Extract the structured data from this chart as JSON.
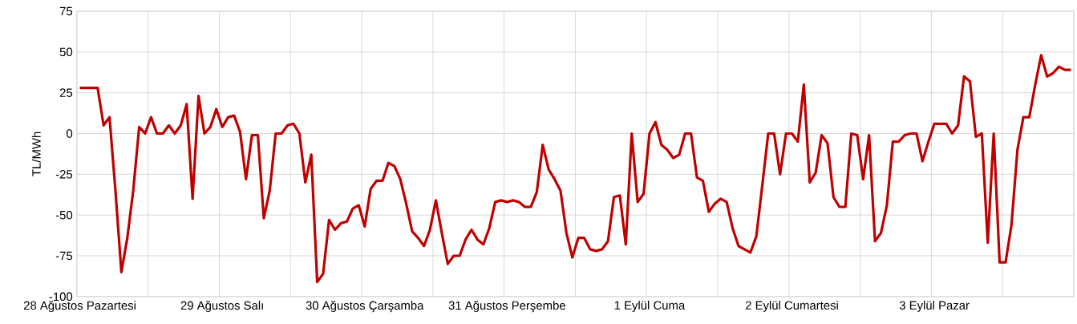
{
  "chart_data": {
    "type": "line",
    "ylabel": "TL/MWh",
    "color": "#c00000",
    "line_style": "solid",
    "grid": true,
    "ylim": [
      -100,
      75
    ],
    "yticks": [
      -100,
      -75,
      -50,
      -25,
      0,
      25,
      50,
      75
    ],
    "categories": [
      "28 Ağustos Pazartesi",
      null,
      null,
      null,
      null,
      null,
      null,
      null,
      null,
      null,
      null,
      null,
      null,
      null,
      null,
      null,
      null,
      null,
      null,
      null,
      null,
      null,
      null,
      null,
      "29 Ağustos Salı",
      null,
      null,
      null,
      null,
      null,
      null,
      null,
      null,
      null,
      null,
      null,
      null,
      null,
      null,
      null,
      null,
      null,
      null,
      null,
      null,
      null,
      null,
      null,
      "30 Ağustos Çarşamba",
      null,
      null,
      null,
      null,
      null,
      null,
      null,
      null,
      null,
      null,
      null,
      null,
      null,
      null,
      null,
      null,
      null,
      null,
      null,
      null,
      null,
      null,
      null,
      "31 Ağustos Perşembe",
      null,
      null,
      null,
      null,
      null,
      null,
      null,
      null,
      null,
      null,
      null,
      null,
      null,
      null,
      null,
      null,
      null,
      null,
      null,
      null,
      null,
      null,
      null,
      "1 Eylül Cuma",
      null,
      null,
      null,
      null,
      null,
      null,
      null,
      null,
      null,
      null,
      null,
      null,
      null,
      null,
      null,
      null,
      null,
      null,
      null,
      null,
      null,
      null,
      null,
      "2 Eylül Cumartesi",
      null,
      null,
      null,
      null,
      null,
      null,
      null,
      null,
      null,
      null,
      null,
      null,
      null,
      null,
      null,
      null,
      null,
      null,
      null,
      null,
      null,
      null,
      null,
      "3 Eylül Pazar",
      null,
      null,
      null,
      null,
      null,
      null,
      null,
      null,
      null,
      null,
      null,
      null,
      null,
      null,
      null,
      null,
      null,
      null,
      null,
      null,
      null,
      null,
      null
    ],
    "values": [
      28,
      28,
      28,
      28,
      5,
      10,
      -35,
      -85,
      -64,
      -35,
      4,
      0,
      10,
      0,
      0,
      5,
      0,
      5,
      18,
      -40,
      23,
      0,
      4,
      15,
      4,
      10,
      11,
      1,
      -28,
      -1,
      -1,
      -52,
      -35,
      0,
      0,
      5,
      6,
      0,
      -30,
      -13,
      -91,
      -86,
      -53,
      -59,
      -55,
      -54,
      -46,
      -44,
      -57,
      -34,
      -29,
      -29,
      -18,
      -20,
      -28,
      -43,
      -60,
      -64,
      -69,
      -59,
      -41,
      -61,
      -80,
      -75,
      -75,
      -65,
      -59,
      -65,
      -68,
      -58,
      -42,
      -41,
      -42,
      -41,
      -42,
      -45,
      -45,
      -36,
      -7,
      -22,
      -28,
      -35,
      -61,
      -76,
      -64,
      -64,
      -71,
      -72,
      -71,
      -66,
      -39,
      -38,
      -68,
      0,
      -42,
      -37,
      0,
      7,
      -7,
      -10,
      -15,
      -13,
      0,
      0,
      -27,
      -29,
      -48,
      -43,
      -40,
      -42,
      -58,
      -69,
      -71,
      -73,
      -63,
      -32,
      0,
      0,
      -25,
      0,
      0,
      -5,
      30,
      -30,
      -24,
      -1,
      -6,
      -39,
      -45,
      -45,
      0,
      -1,
      -28,
      -1,
      -66,
      -61,
      -44,
      -5,
      -5,
      -1,
      0,
      0,
      -17,
      -5,
      6,
      6,
      6,
      0,
      5,
      35,
      32,
      -2,
      0,
      -67,
      0,
      -79,
      -79,
      -56,
      -10,
      10,
      10,
      30,
      48,
      35,
      37,
      41,
      39,
      39
    ]
  }
}
